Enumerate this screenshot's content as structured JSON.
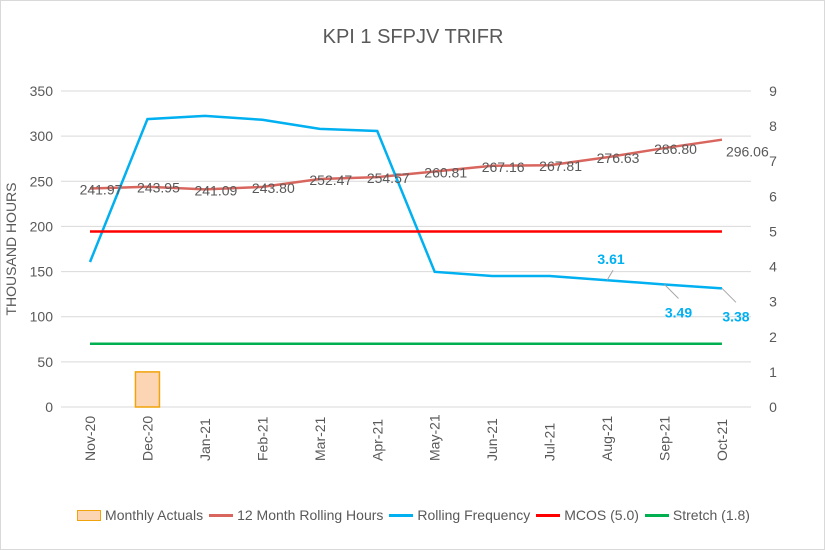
{
  "chart_data": {
    "type": "line",
    "title": "KPI 1 SFPJV TRIFR",
    "ylabel": "THOUSAND HOURS",
    "ylim": [
      0,
      350
    ],
    "y2lim": [
      0,
      9
    ],
    "yticks": [
      "0",
      "50",
      "100",
      "150",
      "200",
      "250",
      "300",
      "350"
    ],
    "y2ticks": [
      "0",
      "1",
      "2",
      "3",
      "4",
      "5",
      "6",
      "7",
      "8",
      "9"
    ],
    "grid": true,
    "legend_position": "bottom",
    "categories": [
      "Nov-20",
      "Dec-20",
      "Jan-21",
      "Feb-21",
      "Mar-21",
      "Apr-21",
      "May-21",
      "Jun-21",
      "Jul-21",
      "Aug-21",
      "Sep-21",
      "Oct-21"
    ],
    "series": [
      {
        "name": "Monthly Actuals",
        "type": "bar",
        "axis": "secondary",
        "color": "#fcd5b4",
        "values": [
          null,
          1,
          null,
          null,
          null,
          null,
          null,
          null,
          null,
          null,
          null,
          null
        ]
      },
      {
        "name": "12 Month Rolling Hours",
        "type": "line",
        "axis": "primary",
        "color": "#d9665e",
        "values": [
          241.97,
          243.95,
          241.09,
          243.8,
          252.47,
          254.57,
          260.81,
          267.16,
          267.81,
          276.63,
          286.8,
          296.06
        ],
        "labels": [
          "241.97",
          "243.95",
          "241.09",
          "243.80",
          "252.47",
          "254.57",
          "260.81",
          "267.16",
          "267.81",
          "276.63",
          "286.80",
          "296.06"
        ]
      },
      {
        "name": "Rolling Frequency",
        "type": "line",
        "axis": "secondary",
        "color": "#00b0f0",
        "values": [
          4.13,
          8.2,
          8.29,
          8.18,
          7.92,
          7.86,
          3.85,
          3.73,
          3.73,
          3.61,
          3.49,
          3.38
        ],
        "labels": [
          null,
          null,
          null,
          null,
          null,
          null,
          null,
          null,
          null,
          "3.61",
          "3.49",
          "3.38"
        ]
      },
      {
        "name": "MCOS (5.0)",
        "type": "line",
        "axis": "secondary",
        "color": "#ff0000",
        "values": [
          5,
          5,
          5,
          5,
          5,
          5,
          5,
          5,
          5,
          5,
          5,
          5
        ]
      },
      {
        "name": "Stretch (1.8)",
        "type": "line",
        "axis": "secondary",
        "color": "#00b050",
        "values": [
          1.8,
          1.8,
          1.8,
          1.8,
          1.8,
          1.8,
          1.8,
          1.8,
          1.8,
          1.8,
          1.8,
          1.8
        ]
      }
    ]
  }
}
